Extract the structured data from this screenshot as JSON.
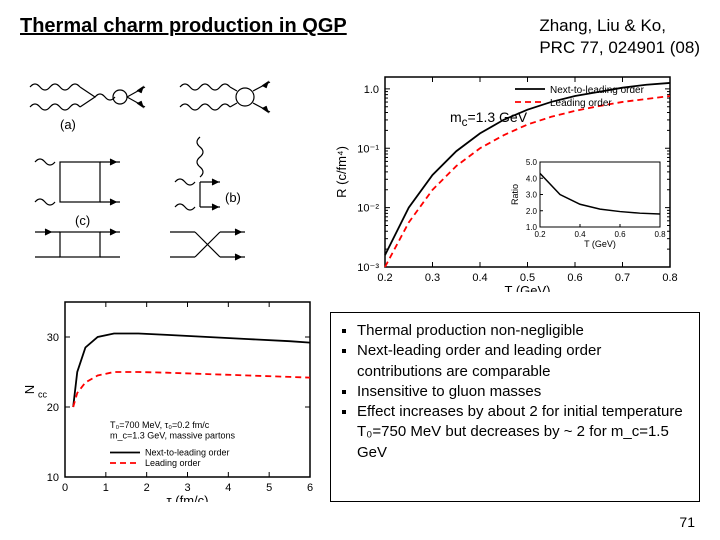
{
  "title": "Thermal charm production in QGP",
  "citation_line1": "Zhang, Liu & Ko,",
  "citation_line2": "PRC 77, 024901 (08)",
  "mc_annotation": "m_c=1.3 GeV",
  "feynman": {
    "labels": [
      "(a)",
      "(b)",
      "(c)"
    ]
  },
  "chart_r": {
    "xlabel": "T (GeV)",
    "ylabel": "R (c/fm⁴)",
    "xlim": [
      0.2,
      0.8
    ],
    "xticks": [
      0.2,
      0.3,
      0.4,
      0.5,
      0.6,
      0.7,
      0.8
    ],
    "ylim_log": [
      -3,
      0.2
    ],
    "yticks_log": [
      -3,
      -2,
      -1,
      0
    ],
    "yticklabels": [
      "10⁻³",
      "10⁻²",
      "10⁻¹",
      "1.0"
    ],
    "legend": [
      "Next-to-leading order",
      "Leading order"
    ],
    "series_nlo": {
      "color": "#000000",
      "dash": "solid",
      "pts": [
        [
          0.2,
          -2.8
        ],
        [
          0.25,
          -2.0
        ],
        [
          0.3,
          -1.45
        ],
        [
          0.35,
          -1.05
        ],
        [
          0.4,
          -0.75
        ],
        [
          0.45,
          -0.52
        ],
        [
          0.5,
          -0.35
        ],
        [
          0.55,
          -0.22
        ],
        [
          0.6,
          -0.12
        ],
        [
          0.65,
          -0.05
        ],
        [
          0.7,
          0.02
        ],
        [
          0.75,
          0.07
        ],
        [
          0.8,
          0.1
        ]
      ]
    },
    "series_lo": {
      "color": "#ff0000",
      "dash": "6,4",
      "pts": [
        [
          0.2,
          -3.0
        ],
        [
          0.25,
          -2.25
        ],
        [
          0.3,
          -1.7
        ],
        [
          0.35,
          -1.3
        ],
        [
          0.4,
          -1.0
        ],
        [
          0.45,
          -0.78
        ],
        [
          0.5,
          -0.6
        ],
        [
          0.55,
          -0.47
        ],
        [
          0.6,
          -0.37
        ],
        [
          0.65,
          -0.29
        ],
        [
          0.7,
          -0.22
        ],
        [
          0.75,
          -0.17
        ],
        [
          0.8,
          -0.12
        ]
      ]
    },
    "inset": {
      "xlabel": "T (GeV)",
      "ylabel": "Ratio",
      "xlim": [
        0.2,
        0.8
      ],
      "ylim": [
        1.0,
        5.0
      ],
      "xticks": [
        0.2,
        0.4,
        0.6,
        0.8
      ],
      "yticks": [
        1.0,
        2.0,
        3.0,
        4.0,
        5.0
      ],
      "pts": [
        [
          0.2,
          4.3
        ],
        [
          0.3,
          3.0
        ],
        [
          0.4,
          2.4
        ],
        [
          0.5,
          2.1
        ],
        [
          0.6,
          1.95
        ],
        [
          0.7,
          1.85
        ],
        [
          0.8,
          1.8
        ]
      ]
    }
  },
  "chart_n": {
    "xlabel": "τ (fm/c)",
    "ylabel": "N_cc",
    "xlim": [
      0,
      6
    ],
    "xticks": [
      0,
      1,
      2,
      3,
      4,
      5,
      6
    ],
    "ylim": [
      10,
      35
    ],
    "yticks": [
      10,
      20,
      30
    ],
    "annot1": "T₀=700 MeV, τ₀=0.2 fm/c",
    "annot2": "m_c=1.3 GeV, massive partons",
    "legend": [
      "Next-to-leading order",
      "Leading order"
    ],
    "series_nlo": {
      "color": "#000000",
      "dash": "solid",
      "pts": [
        [
          0.2,
          20
        ],
        [
          0.3,
          25
        ],
        [
          0.5,
          28.5
        ],
        [
          0.8,
          30
        ],
        [
          1.2,
          30.5
        ],
        [
          1.8,
          30.5
        ],
        [
          2.5,
          30.3
        ],
        [
          3.5,
          30
        ],
        [
          4.5,
          29.7
        ],
        [
          5.5,
          29.4
        ],
        [
          6,
          29.2
        ]
      ]
    },
    "series_lo": {
      "color": "#ff0000",
      "dash": "6,4",
      "pts": [
        [
          0.2,
          20
        ],
        [
          0.3,
          22
        ],
        [
          0.5,
          23.5
        ],
        [
          0.8,
          24.5
        ],
        [
          1.2,
          25
        ],
        [
          1.8,
          25
        ],
        [
          2.5,
          24.9
        ],
        [
          3.5,
          24.7
        ],
        [
          4.5,
          24.5
        ],
        [
          5.5,
          24.3
        ],
        [
          6,
          24.2
        ]
      ]
    }
  },
  "bullets": [
    "Thermal production non-negligible",
    "Next-leading order and leading order contributions are comparable",
    "Insensitive to gluon masses",
    "Effect increases by about 2 for initial temperature T₀=750 MeV but decreases  by ~ 2 for m_c=1.5 GeV"
  ],
  "pagenum": "71",
  "colors": {
    "black": "#000000",
    "red": "#ff0000"
  }
}
